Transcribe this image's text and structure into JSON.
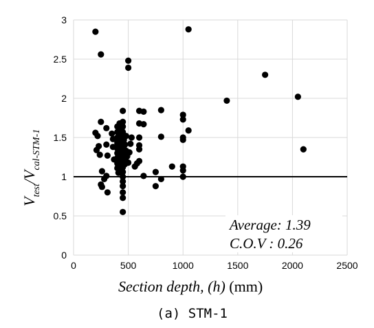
{
  "chart_data": {
    "type": "scatter",
    "xlim": [
      0,
      2500
    ],
    "ylim": [
      0,
      3
    ],
    "x_ticks": [
      "0",
      "500",
      "1000",
      "1500",
      "2000",
      "2500"
    ],
    "y_ticks": [
      "0",
      "0.5",
      "1",
      "1.5",
      "2",
      "2.5",
      "3"
    ],
    "grid": true,
    "reference_line": {
      "y": 1
    },
    "ylabel": {
      "main": "V",
      "sub1": "test",
      "mid": "/V",
      "sub2": "cal-STM-1"
    },
    "xlabel": {
      "italic": "Section depth,  (h)",
      "rest": "  (mm)"
    },
    "annotations": [
      "Average: 1.39",
      "C.O.V : 0.26"
    ],
    "caption": "(a) STM-1",
    "points": [
      [
        200,
        2.85
      ],
      [
        250,
        2.56
      ],
      [
        500,
        2.48
      ],
      [
        500,
        2.39
      ],
      [
        1050,
        2.88
      ],
      [
        1750,
        2.3
      ],
      [
        2050,
        2.02
      ],
      [
        1400,
        1.97
      ],
      [
        2100,
        1.35
      ],
      [
        1000,
        1.79
      ],
      [
        1000,
        1.73
      ],
      [
        1050,
        1.59
      ],
      [
        1000,
        1.5
      ],
      [
        1000,
        1.47
      ],
      [
        1000,
        1.13
      ],
      [
        1000,
        1.08
      ],
      [
        1000,
        1.0
      ],
      [
        800,
        1.85
      ],
      [
        800,
        1.51
      ],
      [
        900,
        1.13
      ],
      [
        800,
        0.97
      ],
      [
        750,
        1.06
      ],
      [
        750,
        0.88
      ],
      [
        600,
        1.84
      ],
      [
        640,
        1.83
      ],
      [
        600,
        1.68
      ],
      [
        640,
        1.67
      ],
      [
        600,
        1.5
      ],
      [
        600,
        1.4
      ],
      [
        600,
        1.35
      ],
      [
        600,
        1.2
      ],
      [
        580,
        1.17
      ],
      [
        560,
        1.13
      ],
      [
        640,
        1.01
      ],
      [
        530,
        1.5
      ],
      [
        520,
        1.42
      ],
      [
        510,
        1.31
      ],
      [
        500,
        1.18
      ],
      [
        200,
        1.56
      ],
      [
        210,
        1.34
      ],
      [
        220,
        1.52
      ],
      [
        230,
        1.39
      ],
      [
        240,
        1.28
      ],
      [
        250,
        1.7
      ],
      [
        260,
        1.07
      ],
      [
        250,
        0.9
      ],
      [
        260,
        0.87
      ],
      [
        280,
        0.97
      ],
      [
        300,
        1.62
      ],
      [
        300,
        1.41
      ],
      [
        310,
        1.27
      ],
      [
        300,
        1.01
      ],
      [
        310,
        0.8
      ],
      [
        350,
        1.55
      ],
      [
        360,
        1.48
      ],
      [
        360,
        1.38
      ],
      [
        370,
        1.22
      ],
      [
        380,
        1.48
      ],
      [
        400,
        1.64
      ],
      [
        400,
        1.57
      ],
      [
        400,
        1.5
      ],
      [
        400,
        1.43
      ],
      [
        400,
        1.36
      ],
      [
        400,
        1.3
      ],
      [
        400,
        1.24
      ],
      [
        400,
        1.17
      ],
      [
        400,
        1.11
      ],
      [
        410,
        1.05
      ],
      [
        420,
        1.68
      ],
      [
        420,
        1.6
      ],
      [
        420,
        1.53
      ],
      [
        420,
        1.46
      ],
      [
        420,
        1.4
      ],
      [
        420,
        1.33
      ],
      [
        420,
        1.27
      ],
      [
        420,
        1.2
      ],
      [
        420,
        1.14
      ],
      [
        430,
        1.08
      ],
      [
        440,
        1.62
      ],
      [
        440,
        1.55
      ],
      [
        440,
        1.48
      ],
      [
        440,
        1.42
      ],
      [
        440,
        1.35
      ],
      [
        440,
        1.29
      ],
      [
        440,
        1.22
      ],
      [
        440,
        1.16
      ],
      [
        440,
        1.1
      ],
      [
        450,
        1.84
      ],
      [
        450,
        1.7
      ],
      [
        450,
        1.64
      ],
      [
        450,
        1.57
      ],
      [
        450,
        1.51
      ],
      [
        450,
        1.45
      ],
      [
        450,
        1.38
      ],
      [
        450,
        1.32
      ],
      [
        450,
        1.25
      ],
      [
        450,
        1.19
      ],
      [
        450,
        1.12
      ],
      [
        450,
        1.06
      ],
      [
        450,
        1.0
      ],
      [
        450,
        0.94
      ],
      [
        450,
        0.88
      ],
      [
        450,
        0.8
      ],
      [
        450,
        0.73
      ],
      [
        450,
        0.55
      ],
      [
        460,
        1.47
      ],
      [
        460,
        1.36
      ],
      [
        460,
        1.23
      ],
      [
        470,
        1.41
      ],
      [
        470,
        1.28
      ],
      [
        470,
        1.16
      ],
      [
        480,
        1.52
      ],
      [
        480,
        1.33
      ],
      [
        480,
        1.2
      ],
      [
        490,
        1.26
      ]
    ]
  }
}
